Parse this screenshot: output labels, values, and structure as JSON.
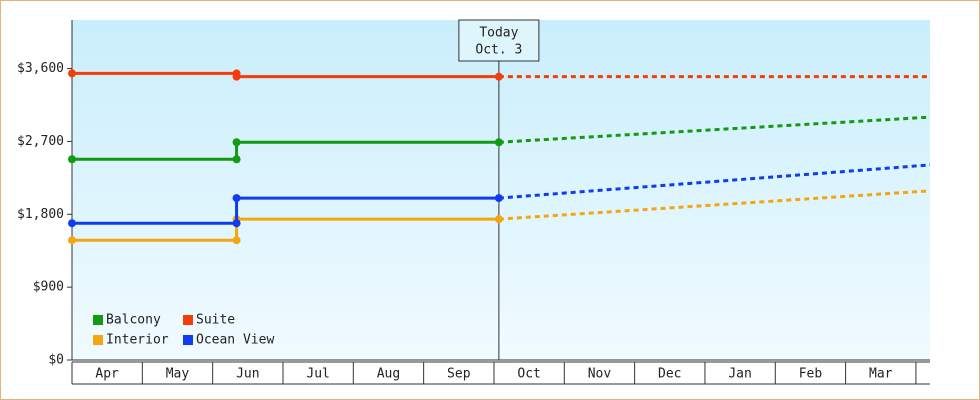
{
  "chart_data": {
    "type": "line",
    "categories": [
      "Apr",
      "May",
      "Jun",
      "Jul",
      "Aug",
      "Sep",
      "Oct",
      "Nov",
      "Dec",
      "Jan",
      "Feb",
      "Mar"
    ],
    "xlim": [
      0,
      12.2
    ],
    "xticks": [
      0,
      1,
      2,
      3,
      4,
      5,
      6,
      7,
      8,
      9,
      10,
      11,
      12
    ],
    "ylim": [
      0,
      4200
    ],
    "yticks": [
      {
        "value": 0,
        "label": "$0"
      },
      {
        "value": 900,
        "label": "$900"
      },
      {
        "value": 1800,
        "label": "$1,800"
      },
      {
        "value": 2700,
        "label": "$2,700"
      },
      {
        "value": 3600,
        "label": "$3,600"
      }
    ],
    "annotation": {
      "x": 6.07,
      "label": [
        "Today",
        "Oct. 3"
      ]
    },
    "legend": "lower-left",
    "series": [
      {
        "name": "Balcony",
        "color": "#129a12",
        "x": [
          0,
          2.34,
          2.34,
          6.07,
          12.2
        ],
        "values": [
          2480,
          2480,
          2690,
          2690,
          3000
        ]
      },
      {
        "name": "Suite",
        "color": "#f53d0a",
        "x": [
          0,
          2.34,
          2.34,
          6.07,
          12.2
        ],
        "values": [
          3540,
          3540,
          3500,
          3500,
          3500
        ]
      },
      {
        "name": "Interior",
        "color": "#f5a50f",
        "x": [
          0,
          2.34,
          2.34,
          6.07,
          12.2
        ],
        "values": [
          1480,
          1480,
          1740,
          1740,
          2090
        ]
      },
      {
        "name": "Ocean View",
        "color": "#0f3cf0",
        "x": [
          0,
          2.34,
          2.34,
          6.07,
          12.2
        ],
        "values": [
          1690,
          1690,
          2000,
          2000,
          2410
        ]
      }
    ]
  }
}
